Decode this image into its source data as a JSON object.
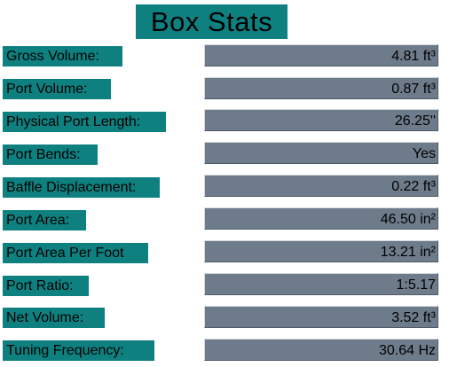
{
  "title": "Box Stats",
  "colors": {
    "label_background": "#0e8080",
    "value_background": "#6e7b8b"
  },
  "rows": [
    {
      "label": "Gross Volume:",
      "value": "4.81 ft³"
    },
    {
      "label": "Port Volume:",
      "value": "0.87 ft³"
    },
    {
      "label": "Physical Port Length:",
      "value": "26.25''"
    },
    {
      "label": "Port Bends:",
      "value": "Yes"
    },
    {
      "label": "Baffle Displacement:",
      "value": "0.22 ft³"
    },
    {
      "label": "Port Area:",
      "value": "46.50 in²"
    },
    {
      "label": "Port Area Per Foot",
      "value": "13.21 in²"
    },
    {
      "label": "Port Ratio:",
      "value": "1:5.17"
    },
    {
      "label": "Net Volume:",
      "value": "3.52 ft³"
    },
    {
      "label": "Tuning Frequency:",
      "value": "30.64 Hz"
    }
  ]
}
